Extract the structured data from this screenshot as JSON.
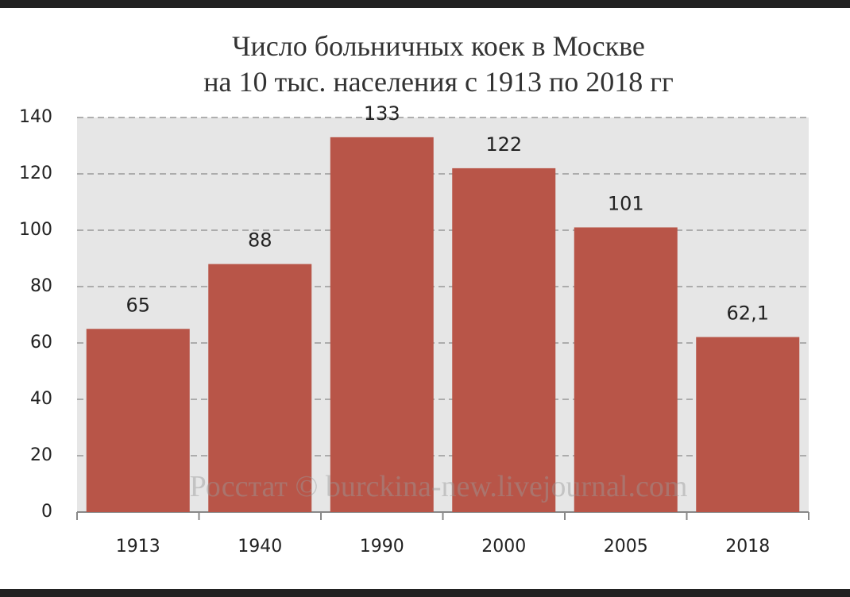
{
  "chart_data": {
    "type": "bar",
    "title": [
      "Число больничных коек в Москве",
      "на 10 тыс. населения с 1913 по 2018 гг"
    ],
    "categories": [
      "1913",
      "1940",
      "1990",
      "2000",
      "2005",
      "2018"
    ],
    "values": [
      65,
      88,
      133,
      122,
      101,
      62.1
    ],
    "value_labels": [
      "65",
      "88",
      "133",
      "122",
      "101",
      "62,1"
    ],
    "color": "#b85548",
    "ylim": [
      0,
      140
    ],
    "yticks": [
      0,
      20,
      40,
      60,
      80,
      100,
      120,
      140
    ],
    "grid": true,
    "watermark": "Росстат © burckina-new.livejournal.com"
  }
}
